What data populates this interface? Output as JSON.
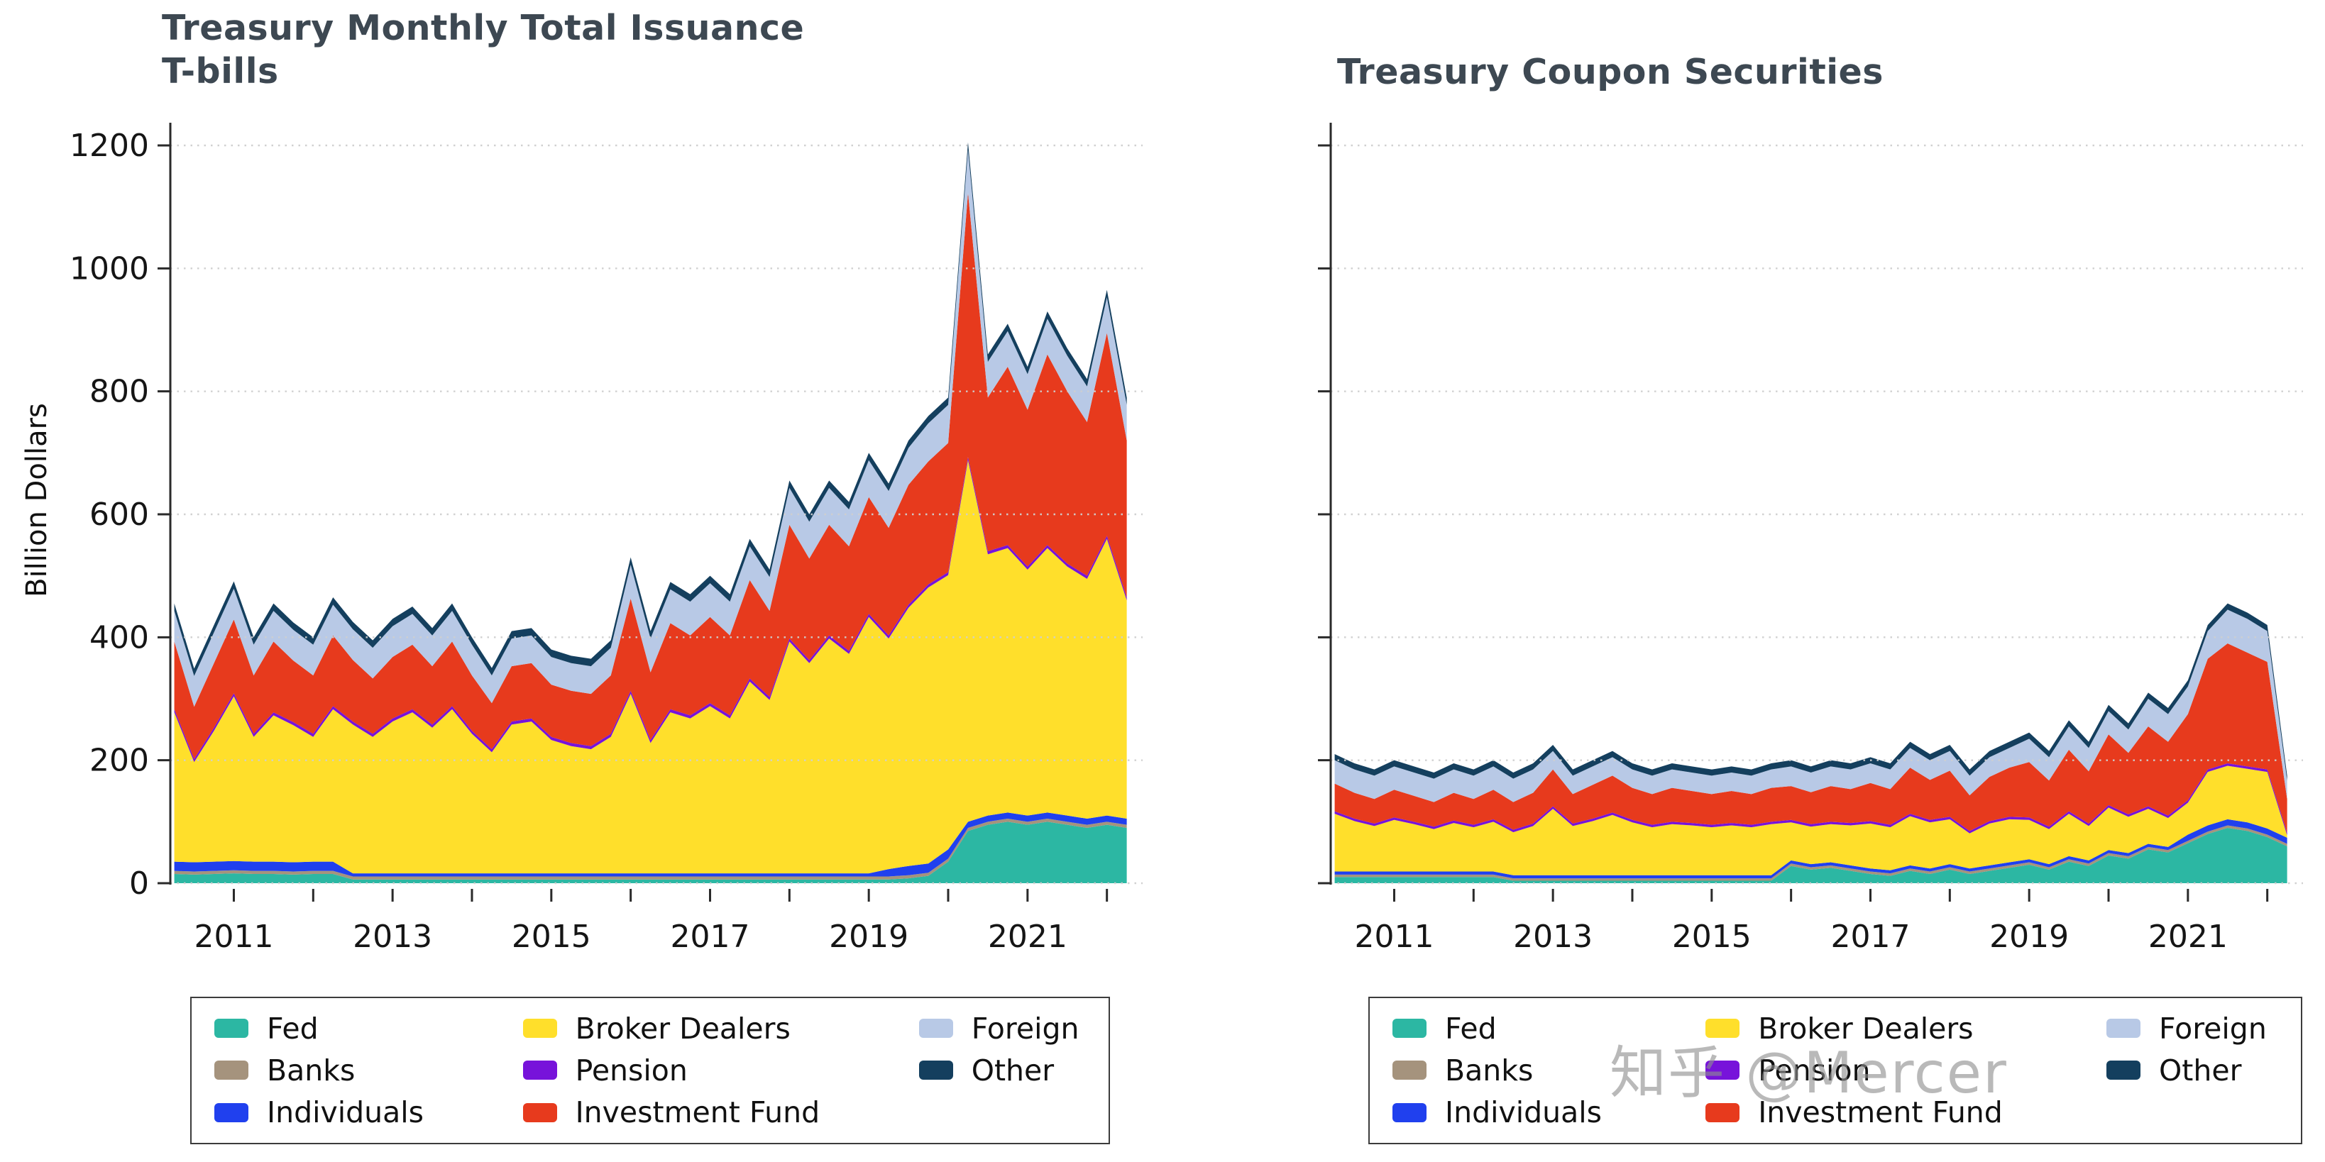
{
  "watermark": {
    "text": "知乎 @Mercer"
  },
  "legend": {
    "items": [
      {
        "label": "Fed",
        "color": "#2cb7a3"
      },
      {
        "label": "Banks",
        "color": "#a5937d"
      },
      {
        "label": "Individuals",
        "color": "#2040ee"
      },
      {
        "label": "Broker Dealers",
        "color": "#ffdf2b"
      },
      {
        "label": "Pension",
        "color": "#7713da"
      },
      {
        "label": "Investment Fund",
        "color": "#e73a1d"
      },
      {
        "label": "Foreign",
        "color": "#b8c9e6"
      },
      {
        "label": "Other",
        "color": "#143f5e"
      }
    ]
  },
  "chart_data": [
    {
      "type": "area",
      "stacked": true,
      "title_line1": "Treasury Monthly Total Issuance",
      "title_line2": "T-bills",
      "ylabel": "Billion Dollars",
      "ylim": [
        0,
        1234
      ],
      "xlim": [
        2010.2,
        2022.45
      ],
      "yticks": [
        0,
        200,
        400,
        600,
        800,
        1000,
        1200
      ],
      "show_ytick_labels": true,
      "xticks": [
        2011,
        2013,
        2015,
        2017,
        2019,
        2021
      ],
      "xticks_minor": [
        2011,
        2012,
        2013,
        2014,
        2015,
        2016,
        2017,
        2018,
        2019,
        2020,
        2021,
        2022
      ],
      "x": [
        2010.25,
        2010.5,
        2010.75,
        2011,
        2011.25,
        2011.5,
        2011.75,
        2012,
        2012.25,
        2012.5,
        2012.75,
        2013,
        2013.25,
        2013.5,
        2013.75,
        2014,
        2014.25,
        2014.5,
        2014.75,
        2015,
        2015.25,
        2015.5,
        2015.75,
        2016,
        2016.25,
        2016.5,
        2016.75,
        2017,
        2017.25,
        2017.5,
        2017.75,
        2018,
        2018.25,
        2018.5,
        2018.75,
        2019,
        2019.25,
        2019.5,
        2019.75,
        2020,
        2020.25,
        2020.5,
        2020.75,
        2021,
        2021.25,
        2021.5,
        2021.75,
        2022,
        2022.25
      ],
      "series": [
        {
          "name": "Fed",
          "values": [
            15,
            14,
            15,
            16,
            15,
            15,
            14,
            15,
            15,
            6,
            6,
            6,
            6,
            6,
            6,
            6,
            6,
            6,
            6,
            6,
            6,
            6,
            6,
            6,
            6,
            6,
            6,
            6,
            6,
            6,
            6,
            6,
            6,
            6,
            6,
            6,
            6,
            8,
            12,
            35,
            85,
            95,
            100,
            95,
            100,
            95,
            90,
            95,
            90
          ]
        },
        {
          "name": "Banks",
          "values": 5
        },
        {
          "name": "Individuals",
          "values": [
            15,
            15,
            15,
            15,
            15,
            15,
            15,
            15,
            15,
            5,
            5,
            5,
            5,
            5,
            5,
            5,
            5,
            5,
            5,
            5,
            5,
            5,
            5,
            5,
            5,
            5,
            5,
            5,
            5,
            5,
            5,
            5,
            5,
            5,
            5,
            5,
            12,
            15,
            15,
            15,
            10,
            10,
            10,
            10,
            10,
            10,
            10,
            10,
            10
          ]
        },
        {
          "name": "Broker Dealers",
          "values": [
            243,
            163,
            213,
            268,
            203,
            238,
            223,
            203,
            248,
            242,
            222,
            247,
            262,
            237,
            267,
            227,
            197,
            242,
            247,
            217,
            207,
            202,
            222,
            292,
            212,
            262,
            252,
            272,
            252,
            312,
            282,
            377,
            342,
            382,
            357,
            417,
            375,
            420,
            449,
            446,
            588,
            425,
            430,
            400,
            430,
            405,
            390,
            450,
            355
          ]
        },
        {
          "name": "Pension",
          "values": 5
        },
        {
          "name": "Investment Fund",
          "values": [
            110,
            85,
            105,
            120,
            95,
            115,
            100,
            95,
            115,
            100,
            90,
            100,
            105,
            95,
            105,
            90,
            75,
            90,
            90,
            85,
            85,
            85,
            95,
            150,
            110,
            140,
            130,
            140,
            130,
            160,
            140,
            185,
            165,
            180,
            170,
            190,
            175,
            195,
            200,
            210,
            430,
            250,
            290,
            255,
            310,
            280,
            250,
            330,
            255
          ]
        },
        {
          "name": "Foreign",
          "values": [
            50,
            50,
            50,
            50,
            50,
            50,
            50,
            50,
            50,
            50,
            50,
            50,
            50,
            50,
            50,
            50,
            45,
            45,
            45,
            45,
            45,
            45,
            45,
            55,
            55,
            55,
            55,
            55,
            55,
            55,
            55,
            60,
            60,
            60,
            60,
            60,
            60,
            60,
            62,
            62,
            70,
            58,
            58,
            58,
            58,
            58,
            58,
            58,
            58
          ]
        },
        {
          "name": "Other",
          "values": 12
        }
      ]
    },
    {
      "type": "area",
      "stacked": true,
      "title": "Treasury Coupon Securities",
      "ylim": [
        0,
        1234
      ],
      "xlim": [
        2010.2,
        2022.45
      ],
      "yticks": [
        0,
        200,
        400,
        600,
        800,
        1000,
        1200
      ],
      "show_ytick_labels": false,
      "xticks": [
        2011,
        2013,
        2015,
        2017,
        2019,
        2021
      ],
      "xticks_minor": [
        2011,
        2012,
        2013,
        2014,
        2015,
        2016,
        2017,
        2018,
        2019,
        2020,
        2021,
        2022
      ],
      "x": [
        2010.25,
        2010.5,
        2010.75,
        2011,
        2011.25,
        2011.5,
        2011.75,
        2012,
        2012.25,
        2012.5,
        2012.75,
        2013,
        2013.25,
        2013.5,
        2013.75,
        2014,
        2014.25,
        2014.5,
        2014.75,
        2015,
        2015.25,
        2015.5,
        2015.75,
        2016,
        2016.25,
        2016.5,
        2016.75,
        2017,
        2017.25,
        2017.5,
        2017.75,
        2018,
        2018.25,
        2018.5,
        2018.75,
        2019,
        2019.25,
        2019.5,
        2019.75,
        2020,
        2020.25,
        2020.5,
        2020.75,
        2021,
        2021.25,
        2021.5,
        2021.75,
        2022,
        2022.25
      ],
      "series": [
        {
          "name": "Fed",
          "values": [
            10,
            10,
            10,
            10,
            10,
            10,
            10,
            10,
            10,
            4,
            4,
            4,
            4,
            4,
            4,
            4,
            4,
            4,
            4,
            4,
            4,
            4,
            4,
            28,
            22,
            25,
            20,
            15,
            12,
            20,
            15,
            22,
            15,
            20,
            25,
            30,
            22,
            35,
            28,
            45,
            40,
            55,
            50,
            65,
            80,
            90,
            85,
            75,
            60
          ]
        },
        {
          "name": "Banks",
          "values": 4
        },
        {
          "name": "Individuals",
          "values": [
            5,
            5,
            5,
            5,
            5,
            5,
            5,
            5,
            5,
            5,
            5,
            5,
            5,
            5,
            5,
            5,
            5,
            5,
            5,
            5,
            5,
            5,
            5,
            5,
            5,
            5,
            5,
            5,
            5,
            5,
            5,
            5,
            5,
            5,
            5,
            5,
            5,
            5,
            5,
            5,
            5,
            5,
            5,
            10,
            10,
            10,
            10,
            10,
            10
          ]
        },
        {
          "name": "Broker Dealers",
          "values": [
            94,
            82,
            74,
            84,
            77,
            69,
            79,
            72,
            81,
            70,
            80,
            108,
            80,
            88,
            98,
            86,
            78,
            83,
            81,
            78,
            81,
            78,
            83,
            62,
            61,
            62,
            65,
            73,
            70,
            80,
            75,
            73,
            57,
            68,
            70,
            64,
            57,
            69,
            56,
            69,
            59,
            57,
            47,
            52,
            87,
            87,
            87,
            92,
            4
          ]
        },
        {
          "name": "Pension",
          "values": 4
        },
        {
          "name": "Investment Fund",
          "values": [
            45,
            42,
            40,
            45,
            42,
            40,
            45,
            42,
            48,
            45,
            50,
            60,
            48,
            55,
            60,
            52,
            50,
            55,
            52,
            50,
            52,
            50,
            55,
            55,
            52,
            58,
            55,
            62,
            58,
            75,
            65,
            75,
            58,
            72,
            80,
            90,
            75,
            100,
            85,
            115,
            100,
            130,
            120,
            140,
            180,
            195,
            185,
            175,
            55
          ]
        },
        {
          "name": "Foreign",
          "values": [
            38,
            38,
            38,
            38,
            38,
            38,
            38,
            38,
            38,
            38,
            38,
            30,
            30,
            30,
            30,
            30,
            30,
            30,
            30,
            30,
            30,
            30,
            30,
            32,
            32,
            32,
            32,
            32,
            32,
            32,
            32,
            32,
            32,
            32,
            32,
            38,
            38,
            38,
            38,
            38,
            38,
            45,
            45,
            45,
            45,
            55,
            55,
            50,
            30
          ]
        },
        {
          "name": "Other",
          "values": [
            10,
            10,
            10,
            10,
            10,
            10,
            10,
            10,
            10,
            10,
            10,
            10,
            10,
            10,
            10,
            10,
            10,
            10,
            10,
            10,
            10,
            10,
            10,
            10,
            10,
            10,
            10,
            10,
            10,
            10,
            10,
            10,
            10,
            10,
            10,
            10,
            10,
            10,
            10,
            10,
            10,
            10,
            10,
            10,
            10,
            10,
            10,
            10,
            8
          ]
        }
      ]
    }
  ]
}
